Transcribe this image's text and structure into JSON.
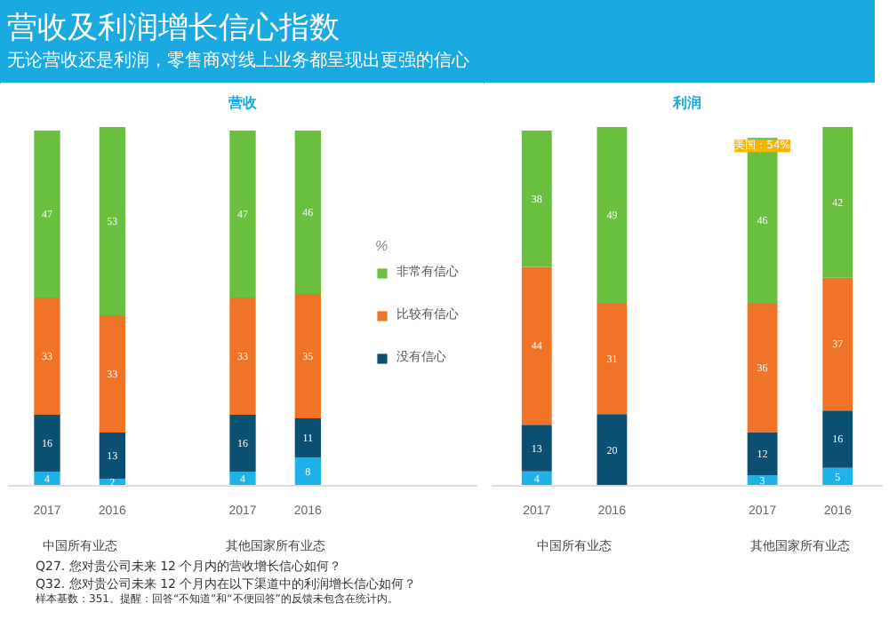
{
  "chart_data": [
    {
      "type": "bar",
      "stacked": true,
      "title": "营收及利润增长信心指数",
      "subtitle": "无论营收还是利润，零售商对线上业务都呈现出更强的信心",
      "xlabel": "营收",
      "legend_title": "%",
      "legend": "right",
      "data_labels": true,
      "categories": [
        "2017",
        "2016",
        "2017",
        "2016"
      ],
      "series": [
        {
          "color": "#1db3e8",
          "values": [
            4,
            2,
            4,
            8
          ]
        },
        {
          "name": "没有信心",
          "color": "#0b4f72",
          "values": [
            16,
            13,
            16,
            11
          ]
        },
        {
          "name": "比较有信心",
          "color": "#f07427",
          "values": [
            33,
            33,
            33,
            35
          ]
        },
        {
          "name": "非常有信心",
          "color": "#6abf3f",
          "values": [
            47,
            53,
            47,
            46
          ]
        }
      ],
      "annotations": [
        "中国所有业态",
        "其他国家所有业态",
        "Q27. 您对贵公司未来 12 个月内的营收增长信心如何？",
        "Q32. 您对贵公司未来 12 个月内在以下渠道中的利润增长信心如何？",
        "样本基数：351。提醒：回答“不知道”和“不便回答”的反馈未包含在统计内。"
      ]
    },
    {
      "type": "bar",
      "stacked": true,
      "xlabel": "利润",
      "data_labels": true,
      "categories": [
        "2017",
        "2016",
        "2017",
        "2016"
      ],
      "series": [
        {
          "color": "#1db3e8",
          "values": [
            4,
            null,
            3,
            5
          ]
        },
        {
          "color": "#0b4f72",
          "values": [
            13,
            20,
            12,
            16
          ]
        },
        {
          "color": "#f07427",
          "values": [
            44,
            31,
            36,
            37
          ]
        },
        {
          "color": "#6abf3f",
          "values": [
            38,
            49,
            46,
            42
          ]
        }
      ],
      "annotations": [
        "中国所有业态",
        "其他国家所有业态",
        "美国：54%"
      ]
    }
  ]
}
